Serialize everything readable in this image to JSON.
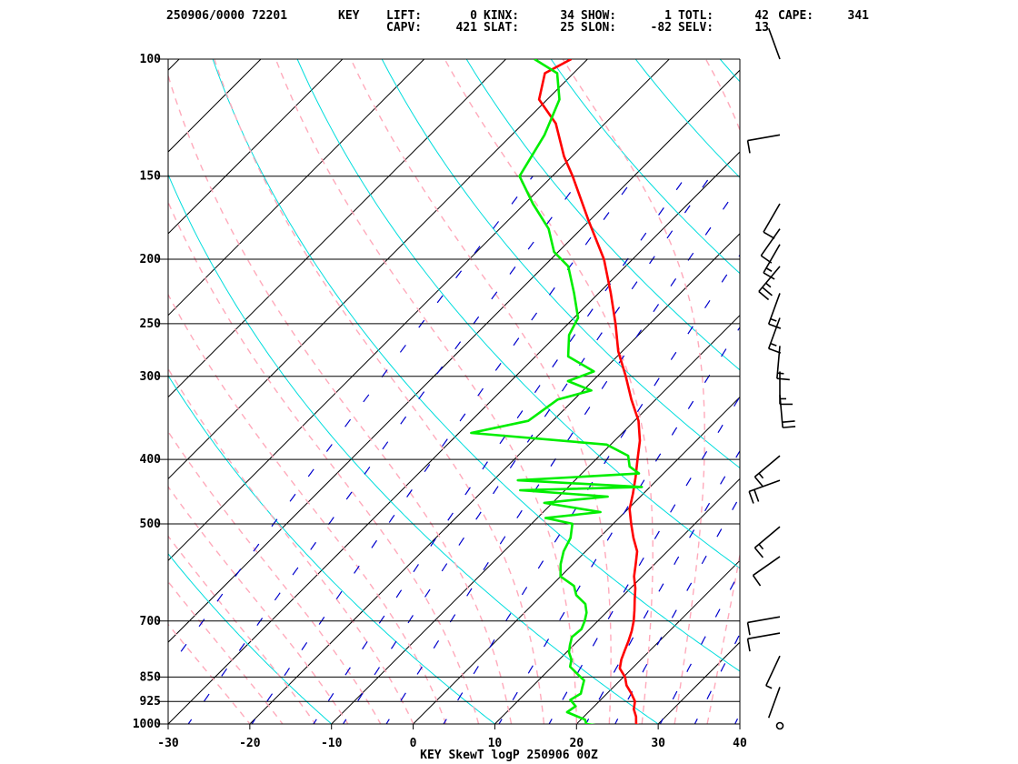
{
  "header": {
    "stamp": "250906/0000 72201",
    "station": "KEY",
    "row1": [
      {
        "label": "LIFT:",
        "value": "0"
      },
      {
        "label": "KINX:",
        "value": "34"
      },
      {
        "label": "SHOW:",
        "value": "1"
      },
      {
        "label": "TOTL:",
        "value": "42"
      },
      {
        "label": "CAPE:",
        "value": "341"
      }
    ],
    "row2": [
      {
        "label": "CAPV:",
        "value": "421"
      },
      {
        "label": "SLAT:",
        "value": "25"
      },
      {
        "label": "SLON:",
        "value": "-82"
      },
      {
        "label": "SELV:",
        "value": "13"
      }
    ]
  },
  "chart_data": {
    "type": "line",
    "title": "KEY SkewT logP 250906 00Z",
    "xlabel": "",
    "ylabel": "",
    "x_ticks": [
      -30,
      -20,
      -10,
      0,
      10,
      20,
      30,
      40
    ],
    "y_ticks": [
      100,
      150,
      200,
      250,
      300,
      400,
      500,
      700,
      850,
      925,
      1000
    ],
    "xlim": [
      -30,
      40
    ],
    "ylim": [
      1000,
      100
    ],
    "y_scale": "log",
    "skew": true,
    "grid": true,
    "colors": {
      "temperature": "#ff0000",
      "dewpoint": "#00ee00",
      "isotherm": "#000000",
      "dry_adiabat": "#00dddd",
      "moist_adiabat": "#ffaabb",
      "mixing_ratio": "#0000cc",
      "wind": "#000000"
    },
    "series": [
      {
        "key": "temperature",
        "points": [
          [
            1010,
            28.5
          ],
          [
            1000,
            27.3
          ],
          [
            975,
            26.4
          ],
          [
            950,
            25.2
          ],
          [
            925,
            24.4
          ],
          [
            900,
            23.0
          ],
          [
            875,
            21.4
          ],
          [
            850,
            20.2
          ],
          [
            825,
            18.5
          ],
          [
            800,
            17.6
          ],
          [
            775,
            16.9
          ],
          [
            750,
            16.2
          ],
          [
            725,
            15.4
          ],
          [
            700,
            14.4
          ],
          [
            675,
            13.2
          ],
          [
            650,
            11.9
          ],
          [
            625,
            10.6
          ],
          [
            600,
            9.0
          ],
          [
            575,
            7.7
          ],
          [
            550,
            6.3
          ],
          [
            525,
            4.2
          ],
          [
            500,
            2.2
          ],
          [
            475,
            0.2
          ],
          [
            450,
            -1.3
          ],
          [
            425,
            -3.0
          ],
          [
            400,
            -4.9
          ],
          [
            375,
            -6.9
          ],
          [
            350,
            -9.5
          ],
          [
            325,
            -13.0
          ],
          [
            300,
            -16.5
          ],
          [
            275,
            -20.5
          ],
          [
            250,
            -24.2
          ],
          [
            225,
            -28.5
          ],
          [
            200,
            -33.5
          ],
          [
            175,
            -40.1
          ],
          [
            150,
            -47.5
          ],
          [
            140,
            -51.0
          ],
          [
            125,
            -56.0
          ],
          [
            115,
            -61.0
          ],
          [
            105,
            -63.5
          ],
          [
            100,
            -62.0
          ]
        ]
      },
      {
        "key": "dewpoint",
        "points": [
          [
            1005,
            22.8
          ],
          [
            1000,
            21.2
          ],
          [
            985,
            20.5
          ],
          [
            960,
            17.4
          ],
          [
            940,
            17.7
          ],
          [
            920,
            16.3
          ],
          [
            900,
            16.8
          ],
          [
            880,
            16.2
          ],
          [
            860,
            15.6
          ],
          [
            840,
            13.9
          ],
          [
            820,
            12.2
          ],
          [
            800,
            11.5
          ],
          [
            780,
            10.3
          ],
          [
            760,
            9.5
          ],
          [
            740,
            8.8
          ],
          [
            720,
            9.0
          ],
          [
            700,
            8.4
          ],
          [
            680,
            7.6
          ],
          [
            660,
            6.4
          ],
          [
            640,
            4.2
          ],
          [
            620,
            2.8
          ],
          [
            600,
            0.0
          ],
          [
            575,
            -1.5
          ],
          [
            550,
            -2.7
          ],
          [
            525,
            -3.5
          ],
          [
            500,
            -5.0
          ],
          [
            490,
            -9.0
          ],
          [
            480,
            -3.0
          ],
          [
            465,
            -11.0
          ],
          [
            455,
            -4.0
          ],
          [
            445,
            -15.5
          ],
          [
            440,
            -1.0
          ],
          [
            430,
            -17.0
          ],
          [
            420,
            -3.0
          ],
          [
            410,
            -5.0
          ],
          [
            395,
            -6.5
          ],
          [
            380,
            -10.5
          ],
          [
            365,
            -28.5
          ],
          [
            350,
            -23.0
          ],
          [
            325,
            -22.0
          ],
          [
            315,
            -19.0
          ],
          [
            305,
            -23.0
          ],
          [
            295,
            -21.0
          ],
          [
            280,
            -26.0
          ],
          [
            260,
            -28.5
          ],
          [
            245,
            -29.5
          ],
          [
            225,
            -33.0
          ],
          [
            205,
            -37.0
          ],
          [
            195,
            -40.5
          ],
          [
            180,
            -44.0
          ],
          [
            165,
            -49.0
          ],
          [
            150,
            -54.0
          ],
          [
            130,
            -56.0
          ],
          [
            115,
            -58.5
          ],
          [
            105,
            -62.0
          ],
          [
            100,
            -66.5
          ]
        ]
      }
    ],
    "wind_barbs": [
      {
        "p": 100,
        "dir": 340,
        "speed": 0
      },
      {
        "p": 130,
        "dir": 260,
        "speed": 10
      },
      {
        "p": 165,
        "dir": 210,
        "speed": 10
      },
      {
        "p": 180,
        "dir": 215,
        "speed": 10
      },
      {
        "p": 190,
        "dir": 210,
        "speed": 15
      },
      {
        "p": 205,
        "dir": 220,
        "speed": 25
      },
      {
        "p": 225,
        "dir": 200,
        "speed": 15
      },
      {
        "p": 245,
        "dir": 200,
        "speed": 15
      },
      {
        "p": 270,
        "dir": 185,
        "speed": 15
      },
      {
        "p": 295,
        "dir": 180,
        "speed": 15
      },
      {
        "p": 320,
        "dir": 175,
        "speed": 20
      },
      {
        "p": 395,
        "dir": 230,
        "speed": 15
      },
      {
        "p": 430,
        "dir": 250,
        "speed": 20
      },
      {
        "p": 505,
        "dir": 230,
        "speed": 15
      },
      {
        "p": 560,
        "dir": 235,
        "speed": 10
      },
      {
        "p": 690,
        "dir": 260,
        "speed": 10
      },
      {
        "p": 730,
        "dir": 260,
        "speed": 10
      },
      {
        "p": 790,
        "dir": 205,
        "speed": 5
      },
      {
        "p": 880,
        "dir": 200,
        "speed": 0
      }
    ],
    "calm_marker": {
      "p": 1000
    }
  }
}
